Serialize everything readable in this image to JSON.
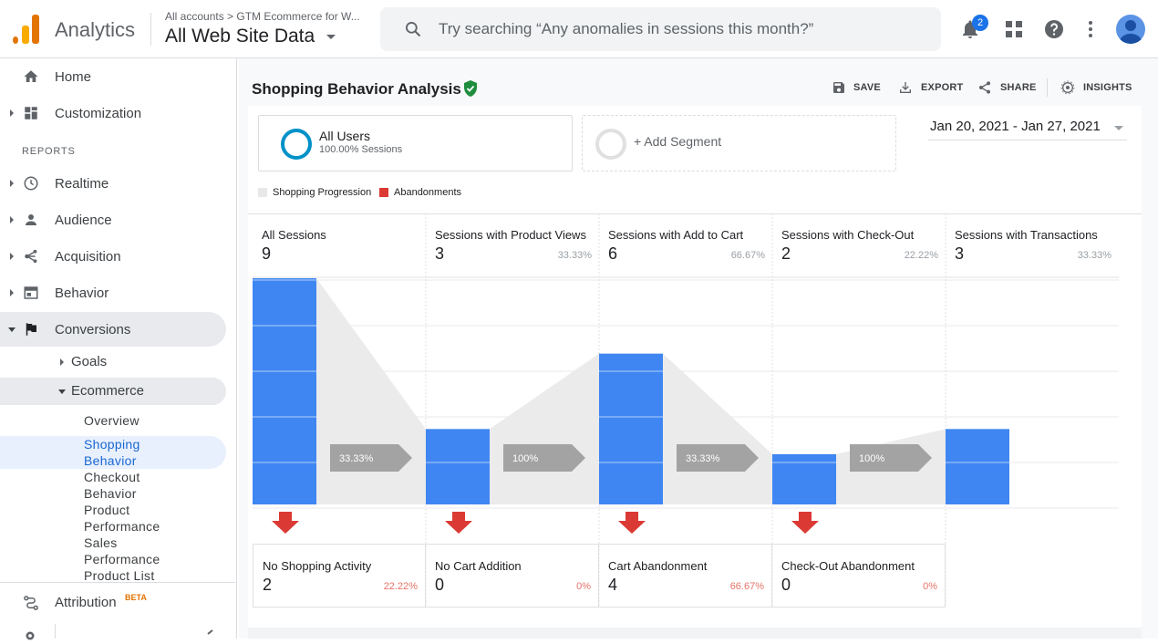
{
  "app": {
    "title": "Analytics"
  },
  "account": {
    "breadcrumb": "All accounts > GTM Ecommerce for W...",
    "view": "All Web Site Data"
  },
  "search": {
    "placeholder": "Try searching “Any anomalies in sessions this month?”"
  },
  "notifications": {
    "count": "2"
  },
  "sidebar": {
    "top_items": [
      {
        "label": "Home",
        "icon": "home-icon"
      },
      {
        "label": "Customization",
        "icon": "dashboard-icon"
      }
    ],
    "reports_header": "REPORTS",
    "report_items": [
      {
        "label": "Realtime",
        "icon": "clock-icon"
      },
      {
        "label": "Audience",
        "icon": "person-icon"
      },
      {
        "label": "Acquisition",
        "icon": "acquisition-icon"
      },
      {
        "label": "Behavior",
        "icon": "behavior-icon"
      },
      {
        "label": "Conversions",
        "icon": "flag-icon"
      }
    ],
    "conversions_children": [
      {
        "label": "Goals"
      },
      {
        "label": "Ecommerce"
      }
    ],
    "ecommerce_children": [
      {
        "label": "Overview"
      },
      {
        "label": "Shopping Behavior"
      },
      {
        "label": "Checkout Behavior"
      },
      {
        "label": "Product Performance"
      },
      {
        "label": "Sales Performance"
      },
      {
        "label": "Product List"
      }
    ],
    "attribution": {
      "label": "Attribution",
      "badge": "BETA"
    }
  },
  "report": {
    "title": "Shopping Behavior Analysis",
    "toolbar": {
      "save": "SAVE",
      "export": "EXPORT",
      "share": "SHARE",
      "insights": "INSIGHTS"
    }
  },
  "segments": {
    "active": {
      "name": "All Users",
      "detail": "100.00% Sessions"
    },
    "add_label": "+ Add Segment"
  },
  "date_range": "Jan 20, 2021 - Jan 27, 2021",
  "legend": [
    {
      "label": "Shopping Progression",
      "color": "#e8e8e8"
    },
    {
      "label": "Abandonments",
      "color": "#db3a34"
    }
  ],
  "colors": {
    "bar": "#3f86f2",
    "arrow": "#a3a3a3",
    "abandon": "#db3a34",
    "accent": "#1a73e8"
  },
  "chart_data": {
    "type": "bar",
    "categories": [
      "All Sessions",
      "Sessions with Product Views",
      "Sessions with Add to Cart",
      "Sessions with Check-Out",
      "Sessions with Transactions"
    ],
    "values": [
      9,
      3,
      6,
      2,
      3
    ],
    "stage_percentages": [
      "",
      "33.33%",
      "66.67%",
      "22.22%",
      "33.33%"
    ],
    "progression_percentages": [
      "33.33%",
      "100%",
      "33.33%",
      "100%"
    ],
    "abandonments": [
      {
        "label": "No Shopping Activity",
        "value": 2,
        "pct": "22.22%"
      },
      {
        "label": "No Cart Addition",
        "value": 0,
        "pct": "0%"
      },
      {
        "label": "Cart Abandonment",
        "value": 4,
        "pct": "66.67%"
      },
      {
        "label": "Check-Out Abandonment",
        "value": 0,
        "pct": "0%"
      }
    ],
    "ylim": [
      0,
      9
    ]
  }
}
